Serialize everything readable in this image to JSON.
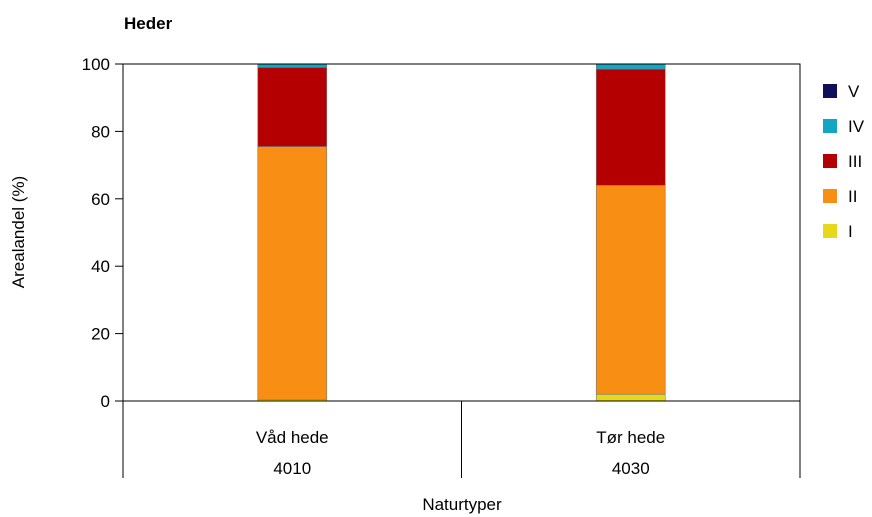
{
  "chart_data": {
    "type": "bar",
    "stacked": true,
    "title": "Heder",
    "xlabel": "Naturtyper",
    "ylabel": "Arealandel (%)",
    "ylim": [
      0,
      100
    ],
    "yticks": [
      0,
      20,
      40,
      60,
      80,
      100
    ],
    "categories": [
      {
        "name": "Våd hede",
        "code": "4010"
      },
      {
        "name": "Tør hede",
        "code": "4030"
      }
    ],
    "series": [
      {
        "name": "I",
        "color": "#e8d81c",
        "values": [
          0.5,
          2
        ]
      },
      {
        "name": "II",
        "color": "#f88e14",
        "values": [
          75,
          62
        ]
      },
      {
        "name": "III",
        "color": "#b40000",
        "values": [
          23.5,
          34.5
        ]
      },
      {
        "name": "IV",
        "color": "#12a6c2",
        "values": [
          1,
          1.5
        ]
      },
      {
        "name": "V",
        "color": "#0f0f5a",
        "values": [
          0,
          0
        ]
      }
    ],
    "legend_order": [
      "V",
      "IV",
      "III",
      "II",
      "I"
    ],
    "legend_position": "right",
    "grid": false
  }
}
